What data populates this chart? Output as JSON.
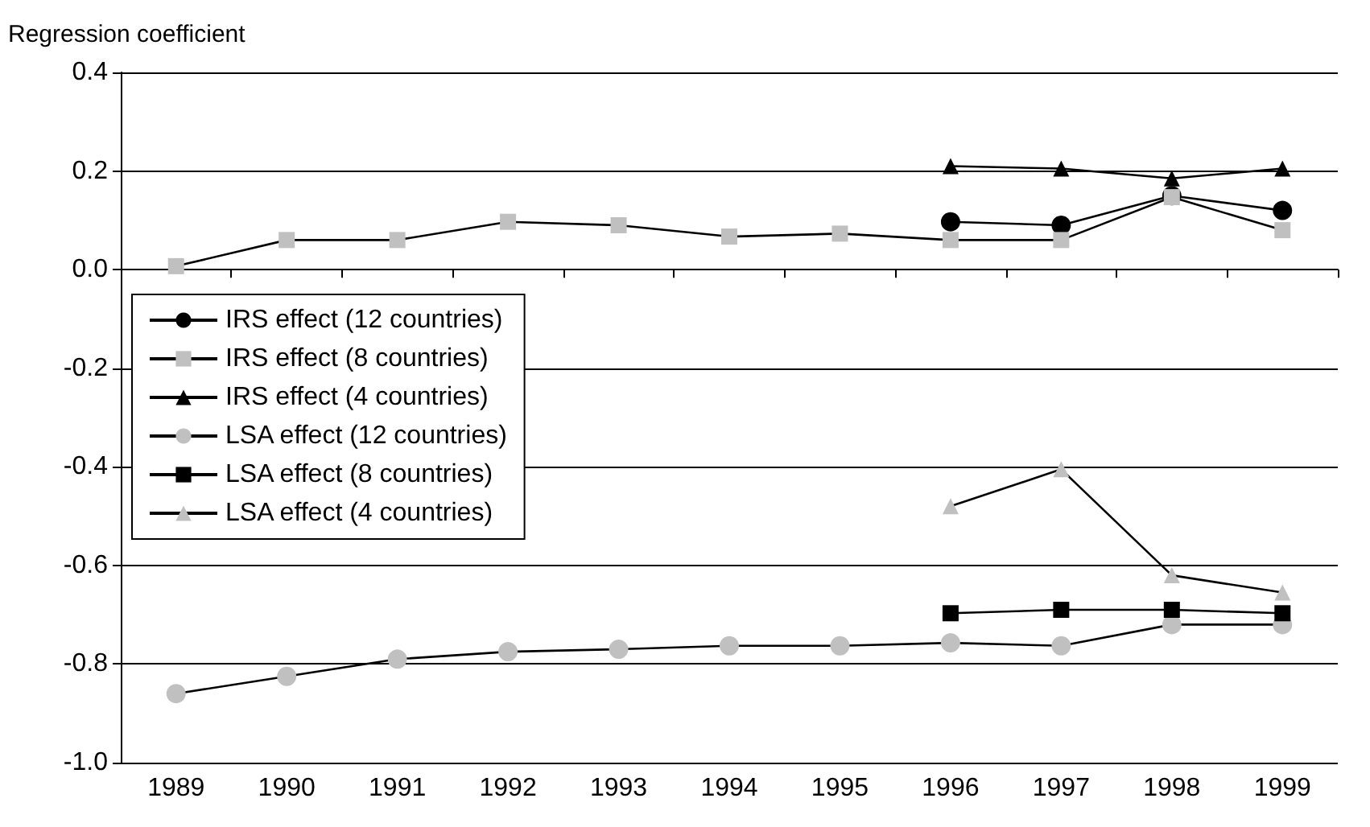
{
  "chart_data": {
    "type": "line",
    "ylabel": "Regression coefficient",
    "categories": [
      "1989",
      "1990",
      "1991",
      "1992",
      "1993",
      "1994",
      "1995",
      "1996",
      "1997",
      "1998",
      "1999"
    ],
    "series": [
      {
        "name": "IRS effect (12 countries)",
        "color": "#000000",
        "marker": "circle",
        "values": [
          null,
          null,
          null,
          null,
          null,
          null,
          null,
          0.097,
          0.09,
          0.15,
          0.12
        ]
      },
      {
        "name": "IRS effect (8 countries)",
        "color": "#c0c0c0",
        "marker": "square",
        "values": [
          0.007,
          0.06,
          0.06,
          0.097,
          0.09,
          0.067,
          0.073,
          0.06,
          0.06,
          0.147,
          0.08
        ]
      },
      {
        "name": "IRS effect (4 countries)",
        "color": "#000000",
        "marker": "triangle",
        "values": [
          null,
          null,
          null,
          null,
          null,
          null,
          null,
          0.21,
          0.205,
          0.185,
          0.205
        ]
      },
      {
        "name": "LSA effect (12 countries)",
        "color": "#c0c0c0",
        "marker": "circle",
        "values": [
          -0.86,
          -0.825,
          -0.79,
          -0.775,
          -0.77,
          -0.763,
          -0.763,
          -0.757,
          -0.763,
          -0.72,
          -0.72
        ]
      },
      {
        "name": "LSA effect (8 countries)",
        "color": "#000000",
        "marker": "square",
        "values": [
          null,
          null,
          null,
          null,
          null,
          null,
          null,
          -0.697,
          -0.69,
          -0.69,
          -0.697
        ]
      },
      {
        "name": "LSA effect (4 countries)",
        "color": "#c0c0c0",
        "marker": "triangle",
        "values": [
          null,
          null,
          null,
          null,
          null,
          null,
          null,
          -0.48,
          -0.405,
          -0.62,
          -0.655
        ]
      }
    ],
    "ylim": [
      -1.0,
      0.4
    ],
    "yticks": [
      {
        "value": -1.0,
        "label": "-1.0"
      },
      {
        "value": -0.8,
        "label": "-0.8"
      },
      {
        "value": -0.6,
        "label": "-0.6"
      },
      {
        "value": -0.4,
        "label": "-0.4"
      },
      {
        "value": -0.2,
        "label": "-0.2"
      },
      {
        "value": 0,
        "label": "0.0"
      },
      {
        "value": 0.2,
        "label": "0.2"
      },
      {
        "value": 0.4,
        "label": "0.4"
      }
    ],
    "grid": "y",
    "legend": "left",
    "line_style": "solid"
  }
}
